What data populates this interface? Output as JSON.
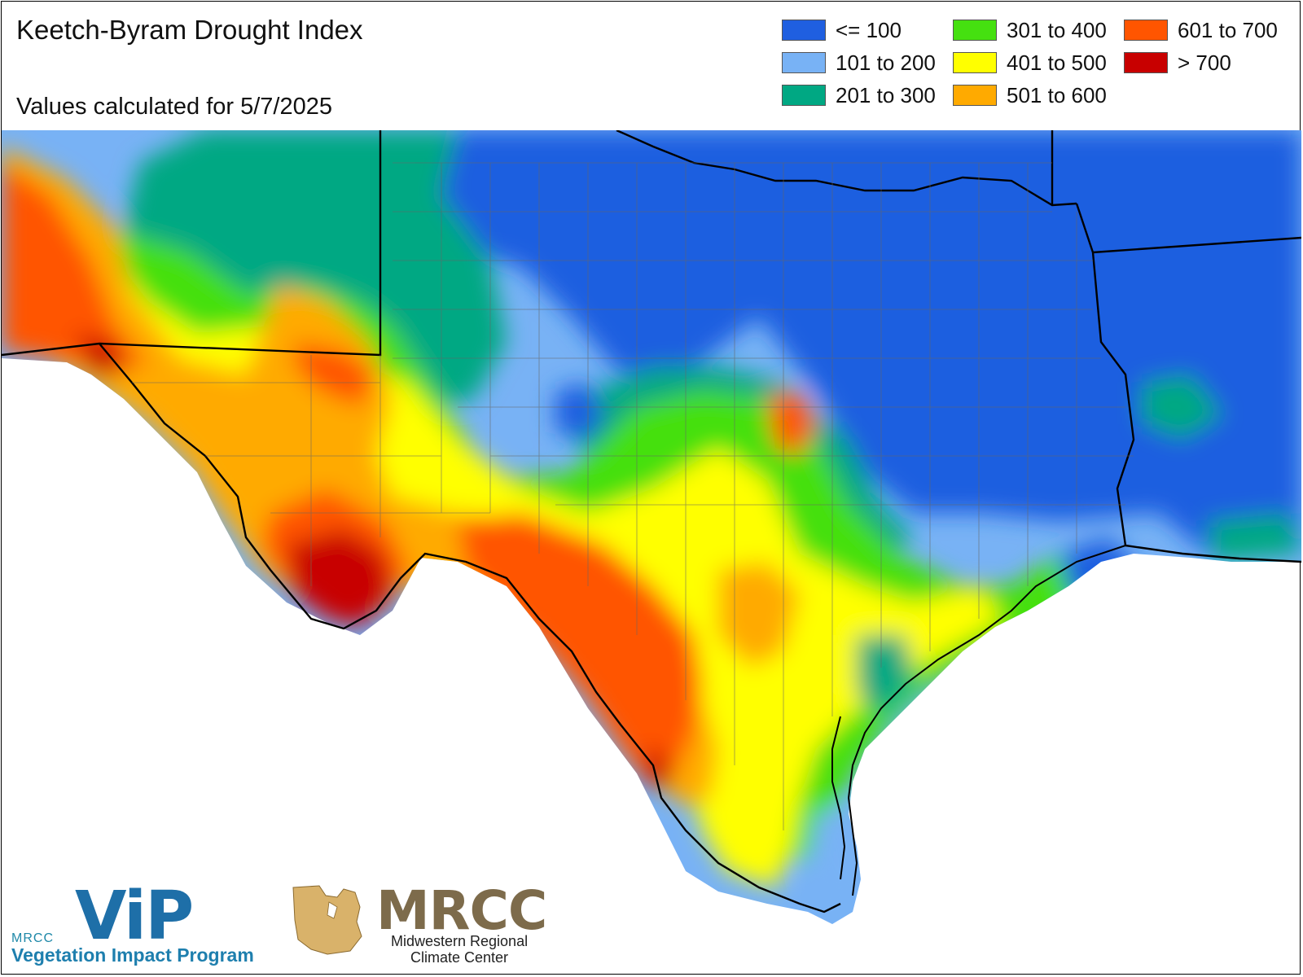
{
  "header": {
    "title": "Keetch-Byram Drought Index",
    "subtitle": "Values calculated for 5/7/2025"
  },
  "legend": {
    "items": [
      {
        "label": "<= 100",
        "color": "#1f5fe0"
      },
      {
        "label": "101 to 200",
        "color": "#78b2f5"
      },
      {
        "label": "201 to 300",
        "color": "#00a883"
      },
      {
        "label": "301 to 400",
        "color": "#45e010"
      },
      {
        "label": "401 to 500",
        "color": "#ffff00"
      },
      {
        "label": "501 to 600",
        "color": "#ffaa00"
      },
      {
        "label": "601 to 700",
        "color": "#ff5500"
      },
      {
        "label": "> 700",
        "color": "#c80000"
      }
    ]
  },
  "logos": {
    "vip_small": "MRCC",
    "vip_word": "ViP",
    "vip_line": "Vegetation Impact Program",
    "mrcc_word": "MRCC",
    "mrcc_line1": "Midwestern Regional",
    "mrcc_line2": "Climate Center"
  }
}
